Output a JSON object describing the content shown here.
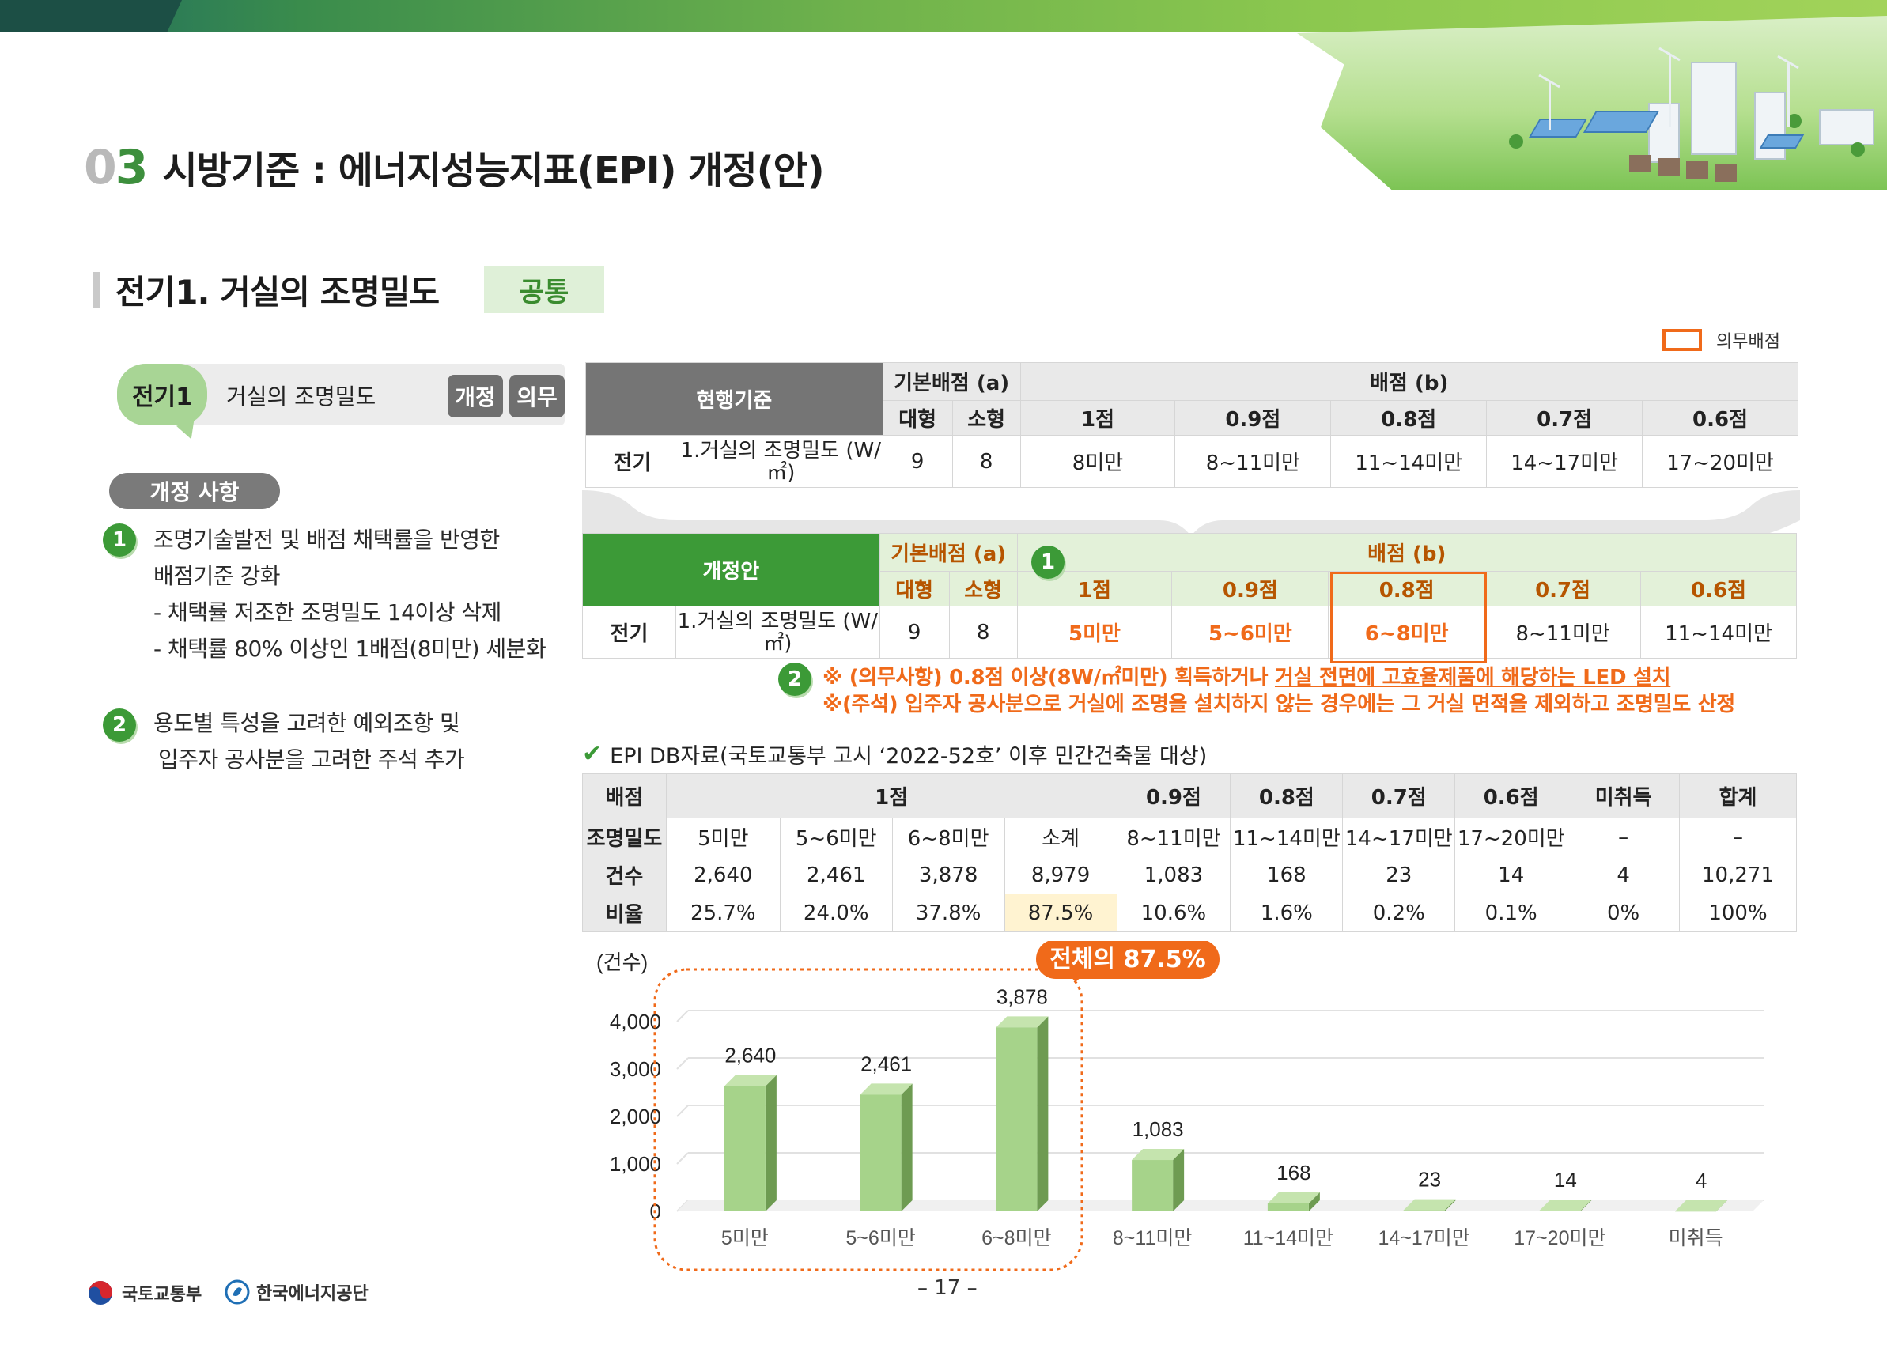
{
  "header": {
    "title_number_0": "0",
    "title_number_3": "3",
    "title": "시방기준 : 에너지성능지표(EPI) 개정(안)"
  },
  "section": {
    "title": "전기1. 거실의 조명밀도",
    "tag": "공통",
    "legend_label": "의무배점"
  },
  "left": {
    "item_code": "전기1",
    "item_name": "거실의 조명밀도",
    "btn_revision": "개정",
    "btn_mandatory": "의무",
    "revision_pill": "개정 사항",
    "point1_num": "1",
    "point1_lines": [
      "조명기술발전 및 배점 채택률을 반영한",
      "배점기준 강화",
      "- 채택률 저조한 조명밀도 14이상 삭제",
      "- 채택률 80% 이상인 1배점(8미만) 세분화"
    ],
    "point2_num": "2",
    "point2_lines": [
      "용도별 특성을 고려한 예외조항 및",
      "입주자 공사분을 고려한 주석 추가"
    ]
  },
  "current_table": {
    "label": "현행기준",
    "base_score": "기본배점 (a)",
    "score": "배점 (b)",
    "large": "대형",
    "small": "소형",
    "grades": [
      "1점",
      "0.9점",
      "0.8점",
      "0.7점",
      "0.6점"
    ],
    "category": "전기",
    "item": "1.거실의 조명밀도 (W/㎡)",
    "large_val": "9",
    "small_val": "8",
    "ranges": [
      "8미만",
      "8~11미만",
      "11~14미만",
      "14~17미만",
      "17~20미만"
    ]
  },
  "revised_table": {
    "label": "개정안",
    "base_score": "기본배점 (a)",
    "score": "배점 (b)",
    "marker": "1",
    "large": "대형",
    "small": "소형",
    "grades": [
      "1점",
      "0.9점",
      "0.8점",
      "0.7점",
      "0.6점"
    ],
    "category": "전기",
    "item": "1.거실의 조명밀도 (W/㎡)",
    "large_val": "9",
    "small_val": "8",
    "ranges": [
      "5미만",
      "5~6미만",
      "6~8미만",
      "8~11미만",
      "11~14미만"
    ]
  },
  "notes": {
    "marker": "2",
    "note1_prefix": "※ (의무사항) 0.8점 이상(8W/㎡미만) 획득하거나 ",
    "note1_underlined": "거실 전면에 고효율제품에 해당하는 LED 설치",
    "note2": "※(주석) 입주자 공사분으로 거실에 조명을 설치하지 않는 경우에는 그 거실 면적을 제외하고 조명밀도 산정"
  },
  "db": {
    "title": "EPI DB자료(국토교통부 고시 ‘2022-52호’ 이후 민간건축물 대상)",
    "row_score_label": "배점",
    "score_headers": [
      "1점",
      "0.9점",
      "0.8점",
      "0.7점",
      "0.6점",
      "미취득",
      "합계"
    ],
    "row_density_label": "조명밀도",
    "densities": [
      "5미만",
      "5~6미만",
      "6~8미만",
      "소계",
      "8~11미만",
      "11~14미만",
      "14~17미만",
      "17~20미만",
      "–",
      "–"
    ],
    "row_count_label": "건수",
    "counts": [
      "2,640",
      "2,461",
      "3,878",
      "8,979",
      "1,083",
      "168",
      "23",
      "14",
      "4",
      "10,271"
    ],
    "row_ratio_label": "비율",
    "ratios": [
      "25.7%",
      "24.0%",
      "37.8%",
      "87.5%",
      "10.6%",
      "1.6%",
      "0.2%",
      "0.1%",
      "0%",
      "100%"
    ]
  },
  "chart_data": {
    "type": "bar",
    "ylabel": "(건수)",
    "ylim": [
      0,
      4000
    ],
    "yticks": [
      "0",
      "1,000",
      "2,000",
      "3,000",
      "4,000"
    ],
    "categories": [
      "5미만",
      "5~6미만",
      "6~8미만",
      "8~11미만",
      "11~14미만",
      "14~17미만",
      "17~20미만",
      "미취득"
    ],
    "values": [
      2640,
      2461,
      3878,
      1083,
      168,
      23,
      14,
      4
    ],
    "data_labels": [
      "2,640",
      "2,461",
      "3,878",
      "1,083",
      "168",
      "23",
      "14",
      "4"
    ],
    "callout": "전체의 87.5%",
    "bar_color": "#a6d38a",
    "callout_color": "#f06a1a"
  },
  "footer": {
    "ministry": "국토교통부",
    "agency": "한국에너지공단",
    "page": "– 17 –"
  }
}
